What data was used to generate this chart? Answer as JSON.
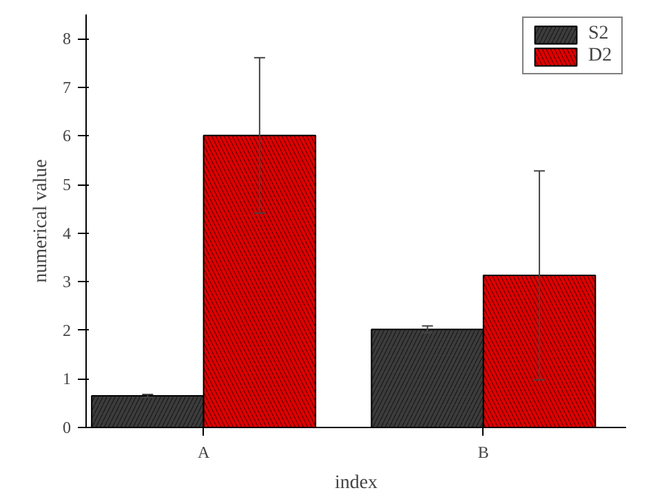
{
  "chart_data": {
    "type": "bar",
    "xlabel": "index",
    "ylabel": "numerical value",
    "categories": [
      "A",
      "B"
    ],
    "series": [
      {
        "name": "S2",
        "color": "#3c3c3c",
        "values": [
          0.65,
          2.02
        ],
        "errors": [
          0.03,
          0.07
        ]
      },
      {
        "name": "D2",
        "color": "#e00000",
        "values": [
          6.01,
          3.13
        ],
        "errors": [
          1.6,
          2.15
        ]
      }
    ],
    "ylim": [
      0,
      8.5
    ],
    "yticks": [
      0,
      1,
      2,
      3,
      4,
      5,
      6,
      7,
      8
    ],
    "grid": false,
    "legend": "top right"
  }
}
